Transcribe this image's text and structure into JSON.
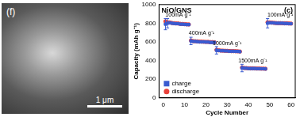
{
  "chart_data": {
    "type": "scatter",
    "title": "NiO/GNS",
    "panel_label": "(c)",
    "x_label": "Cycle Number",
    "y_label": "Capacity (mAh g⁻¹)",
    "xlim": [
      -2,
      62
    ],
    "xticks": [
      0,
      10,
      20,
      30,
      40,
      50,
      60
    ],
    "ylim": [
      0,
      1000
    ],
    "yticks": [
      0,
      200,
      400,
      600,
      800,
      1000
    ],
    "grid": false,
    "legend": "lower left",
    "x": [
      1,
      2,
      3,
      4,
      5,
      6,
      7,
      8,
      9,
      10,
      11,
      12,
      13,
      14,
      15,
      16,
      17,
      18,
      19,
      20,
      21,
      22,
      23,
      24,
      25,
      26,
      27,
      28,
      29,
      30,
      31,
      32,
      33,
      34,
      35,
      36,
      37,
      38,
      39,
      40,
      41,
      42,
      43,
      44,
      45,
      46,
      47,
      48,
      49,
      50,
      51,
      52,
      53,
      54,
      55,
      56,
      57,
      58,
      59,
      60
    ],
    "series": [
      {
        "name": "charge",
        "color": "#3a5bd0",
        "marker": "square",
        "values": [
          790,
          800,
          805,
          800,
          798,
          795,
          795,
          790,
          790,
          788,
          785,
          785,
          610,
          605,
          605,
          603,
          600,
          600,
          600,
          598,
          598,
          595,
          595,
          595,
          510,
          508,
          505,
          505,
          503,
          503,
          500,
          500,
          500,
          498,
          498,
          495,
          320,
          318,
          318,
          315,
          315,
          315,
          315,
          313,
          313,
          312,
          312,
          310,
          800,
          805,
          805,
          803,
          800,
          800,
          800,
          800,
          798,
          798,
          795,
          795
        ],
        "errors": [
          60,
          50,
          null,
          null,
          null,
          null,
          null,
          null,
          null,
          null,
          null,
          null,
          40,
          null,
          null,
          null,
          null,
          null,
          null,
          null,
          null,
          null,
          null,
          null,
          40,
          null,
          null,
          null,
          null,
          null,
          null,
          null,
          null,
          null,
          null,
          null,
          40,
          null,
          null,
          null,
          null,
          null,
          null,
          null,
          null,
          null,
          null,
          null,
          50,
          null,
          null,
          null,
          null,
          null,
          null,
          null,
          null,
          null,
          null,
          null
        ]
      },
      {
        "name": "discharge",
        "color": "#e8413a",
        "marker": "circle",
        "values": [
          820,
          810,
          808,
          803,
          800,
          798,
          797,
          793,
          792,
          790,
          788,
          787,
          615,
          608,
          607,
          605,
          603,
          602,
          601,
          600,
          600,
          598,
          597,
          596,
          515,
          510,
          507,
          506,
          505,
          504,
          502,
          501,
          501,
          500,
          499,
          497,
          325,
          320,
          319,
          317,
          316,
          316,
          315,
          314,
          314,
          313,
          313,
          312,
          810,
          808,
          806,
          804,
          802,
          801,
          801,
          800,
          799,
          799,
          797,
          796
        ]
      }
    ],
    "annotations": [
      {
        "text": "100mA g⁻¹",
        "x": 7,
        "y": 890
      },
      {
        "text": "400mA g⁻¹",
        "x": 18,
        "y": 690
      },
      {
        "text": "1000mA g⁻¹",
        "x": 30,
        "y": 585
      },
      {
        "text": "1500mA g⁻¹",
        "x": 42,
        "y": 395
      },
      {
        "text": "100mA g⁻¹",
        "x": 55,
        "y": 885
      }
    ]
  },
  "image_panel": {
    "label": "(f)",
    "scale_bar": "1 μm"
  }
}
